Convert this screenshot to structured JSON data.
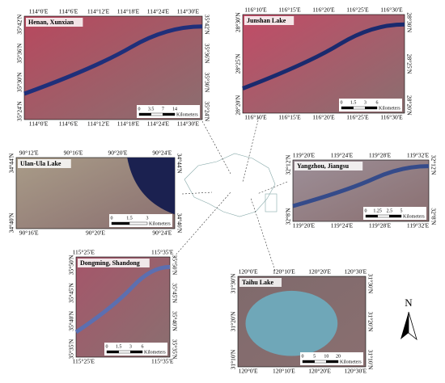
{
  "panels": [
    {
      "title": "Henan, Xunxian",
      "top": [
        "114°0'E",
        "114°6'E",
        "114°12'E",
        "114°18'E",
        "114°24'E",
        "114°30'E"
      ],
      "bottom": [
        "114°0'E",
        "114°6'E",
        "114°12'E",
        "114°18'E",
        "114°24'E",
        "114°30'E"
      ],
      "left": [
        "35°42'N",
        "35°36'N",
        "35°30'N",
        "35°24'N"
      ],
      "right": [
        "35°42'N",
        "35°36'N",
        "35°30'N",
        "35°24'N"
      ],
      "scale": {
        "ticks": [
          "0",
          "3.5",
          "7",
          "14"
        ],
        "unit": "Kilometers"
      }
    },
    {
      "title": "Junshan Lake",
      "top": [
        "116°10'E",
        "116°15'E",
        "116°20'E",
        "116°25'E",
        "116°30'E"
      ],
      "bottom": [
        "116°10'E",
        "116°15'E",
        "116°20'E",
        "116°25'E",
        "116°30'E"
      ],
      "left": [
        "28°30'N",
        "28°25'N",
        "28°20'N"
      ],
      "right": [
        "28°30'N",
        "28°25'N",
        "28°20'N"
      ],
      "scale": {
        "ticks": [
          "0",
          "1.5",
          "3",
          "6"
        ],
        "unit": "Kilometers"
      }
    },
    {
      "title": "Ulan-Ula Lake",
      "top": [
        "90°12'E",
        "90°16'E",
        "90°20'E",
        "90°24'E"
      ],
      "bottom": [
        "90°16'E",
        "90°20'E",
        "90°24'E"
      ],
      "left": [
        "34°44'N",
        "34°40'N"
      ],
      "right": [
        "34°44'N",
        "34°40'N"
      ],
      "scale": {
        "ticks": [
          "0",
          "1.5",
          "3"
        ],
        "unit": "Kilometers"
      }
    },
    {
      "title": "Yangzhou, Jiangsu",
      "top": [
        "119°20'E",
        "119°24'E",
        "119°28'E",
        "119°32'E"
      ],
      "bottom": [
        "119°20'E",
        "119°24'E",
        "119°28'E",
        "119°32'E"
      ],
      "left": [
        "32°12'N",
        "32°8'N"
      ],
      "right": [
        "32°12'N",
        "32°8'N"
      ],
      "scale": {
        "ticks": [
          "0",
          "1.25",
          "2.5",
          "5"
        ],
        "unit": "Kilometers"
      }
    },
    {
      "title": "Dongming, Shandong",
      "top": [
        "115°25'E",
        "115°35'E"
      ],
      "bottom": [
        "115°25'E",
        "115°35'E"
      ],
      "left": [
        "35°50'N",
        "35°45'N",
        "35°40'N",
        "35°35'N"
      ],
      "right": [
        "35°50'N",
        "35°45'N",
        "35°40'N",
        "35°35'N"
      ],
      "scale": {
        "ticks": [
          "0",
          "1.5",
          "3",
          "6"
        ],
        "unit": "Kilometers"
      }
    },
    {
      "title": "Taihu Lake",
      "top": [
        "120°0'E",
        "120°10'E",
        "120°20'E",
        "120°30'E"
      ],
      "bottom": [
        "120°0'E",
        "120°10'E",
        "120°20'E",
        "120°30'E"
      ],
      "left": [
        "31°30'N",
        "31°20'N",
        "31°10'N"
      ],
      "right": [
        "31°30'N",
        "31°20'N",
        "31°10'N"
      ],
      "scale": {
        "ticks": [
          "0",
          "5",
          "10",
          "20"
        ],
        "unit": "Kilometers"
      }
    }
  ],
  "north": "N"
}
